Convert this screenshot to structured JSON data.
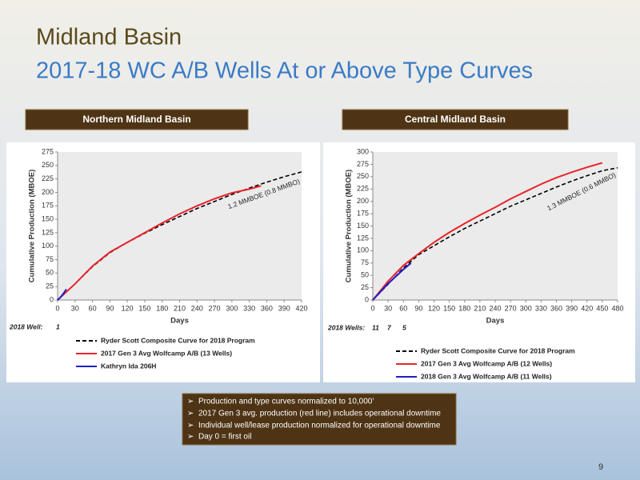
{
  "slide_title": "Midland Basin",
  "slide_subtitle": "2017-18 WC A/B Wells At or Above Type Curves",
  "notes": [
    "Production and type curves normalized to 10,000’",
    "2017 Gen 3 avg. production (red line) includes operational downtime",
    "Individual well/lease production normalized for operational downtime",
    "Day 0 = first oil"
  ],
  "page_number": 9,
  "chart_data": [
    {
      "type": "line",
      "title": "Northern Midland Basin",
      "xlabel": "Days",
      "ylabel": "Cumulative Production (MBOE)",
      "xlim": [
        0,
        420
      ],
      "xticks": [
        0,
        30,
        60,
        90,
        120,
        150,
        180,
        210,
        240,
        270,
        300,
        330,
        360,
        390,
        420
      ],
      "ylim": [
        0,
        275
      ],
      "yticks": [
        0,
        25,
        50,
        75,
        100,
        125,
        150,
        175,
        200,
        225,
        250,
        275
      ],
      "annotation": "1.2 MMBOE (0.8 MMBO)",
      "well_label": "2018 Well:",
      "well_counts": [
        1
      ],
      "series": [
        {
          "name": "Ryder Scott Composite Curve for 2018 Program",
          "color": "#000000",
          "linestyle": "dashed",
          "x": [
            0,
            30,
            60,
            90,
            120,
            150,
            180,
            210,
            240,
            270,
            300,
            330,
            360,
            390,
            420
          ],
          "values": [
            0,
            30,
            62,
            88,
            107,
            124,
            140,
            155,
            170,
            183,
            196,
            208,
            219,
            229,
            238
          ]
        },
        {
          "name": "2017 Gen 3 Avg Wolfcamp A/B (13 Wells)",
          "color": "#e8242a",
          "linestyle": "solid",
          "x": [
            0,
            30,
            60,
            90,
            120,
            150,
            180,
            210,
            240,
            270,
            300,
            330,
            350
          ],
          "values": [
            0,
            30,
            63,
            89,
            107,
            125,
            143,
            160,
            175,
            188,
            199,
            206,
            212
          ]
        },
        {
          "name": "Kathryn Ida 206H",
          "color": "#1f1fc8",
          "linestyle": "solid",
          "x": [
            0,
            5,
            10,
            15
          ],
          "values": [
            0,
            5,
            12,
            20
          ]
        }
      ]
    },
    {
      "type": "line",
      "title": "Central Midland Basin",
      "xlabel": "Days",
      "ylabel": "Cumulative Production (MBOE)",
      "xlim": [
        0,
        480
      ],
      "xticks": [
        0,
        30,
        60,
        90,
        120,
        150,
        180,
        210,
        240,
        270,
        300,
        330,
        360,
        390,
        420,
        450,
        480
      ],
      "ylim": [
        0,
        300
      ],
      "yticks": [
        0,
        25,
        50,
        75,
        100,
        125,
        150,
        175,
        200,
        225,
        250,
        275,
        300
      ],
      "annotation": "1.3 MMBOE (0.6 MMBO)",
      "well_label": "2018 Wells:",
      "well_counts": [
        11,
        7,
        5
      ],
      "series": [
        {
          "name": "Ryder Scott Composite Curve for 2018 Program",
          "color": "#000000",
          "linestyle": "dashed",
          "x": [
            0,
            30,
            60,
            90,
            120,
            150,
            180,
            210,
            240,
            270,
            300,
            330,
            360,
            390,
            420,
            450,
            480
          ],
          "values": [
            0,
            32,
            65,
            92,
            110,
            128,
            145,
            160,
            175,
            190,
            203,
            216,
            229,
            241,
            252,
            262,
            268
          ]
        },
        {
          "name": "2017 Gen 3 Avg Wolfcamp A/B (12 Wells)",
          "color": "#e8242a",
          "linestyle": "solid",
          "x": [
            0,
            30,
            60,
            90,
            120,
            150,
            180,
            210,
            240,
            270,
            300,
            330,
            360,
            390,
            420,
            450
          ],
          "values": [
            0,
            38,
            70,
            94,
            117,
            137,
            155,
            172,
            188,
            205,
            220,
            235,
            248,
            259,
            269,
            278
          ]
        },
        {
          "name": "2018 Gen 3 Avg Wolfcamp A/B (11 Wells)",
          "color": "#1f1fc8",
          "linestyle": "solid",
          "x": [
            0,
            30,
            60,
            75
          ],
          "values": [
            0,
            33,
            62,
            75
          ]
        }
      ]
    }
  ]
}
